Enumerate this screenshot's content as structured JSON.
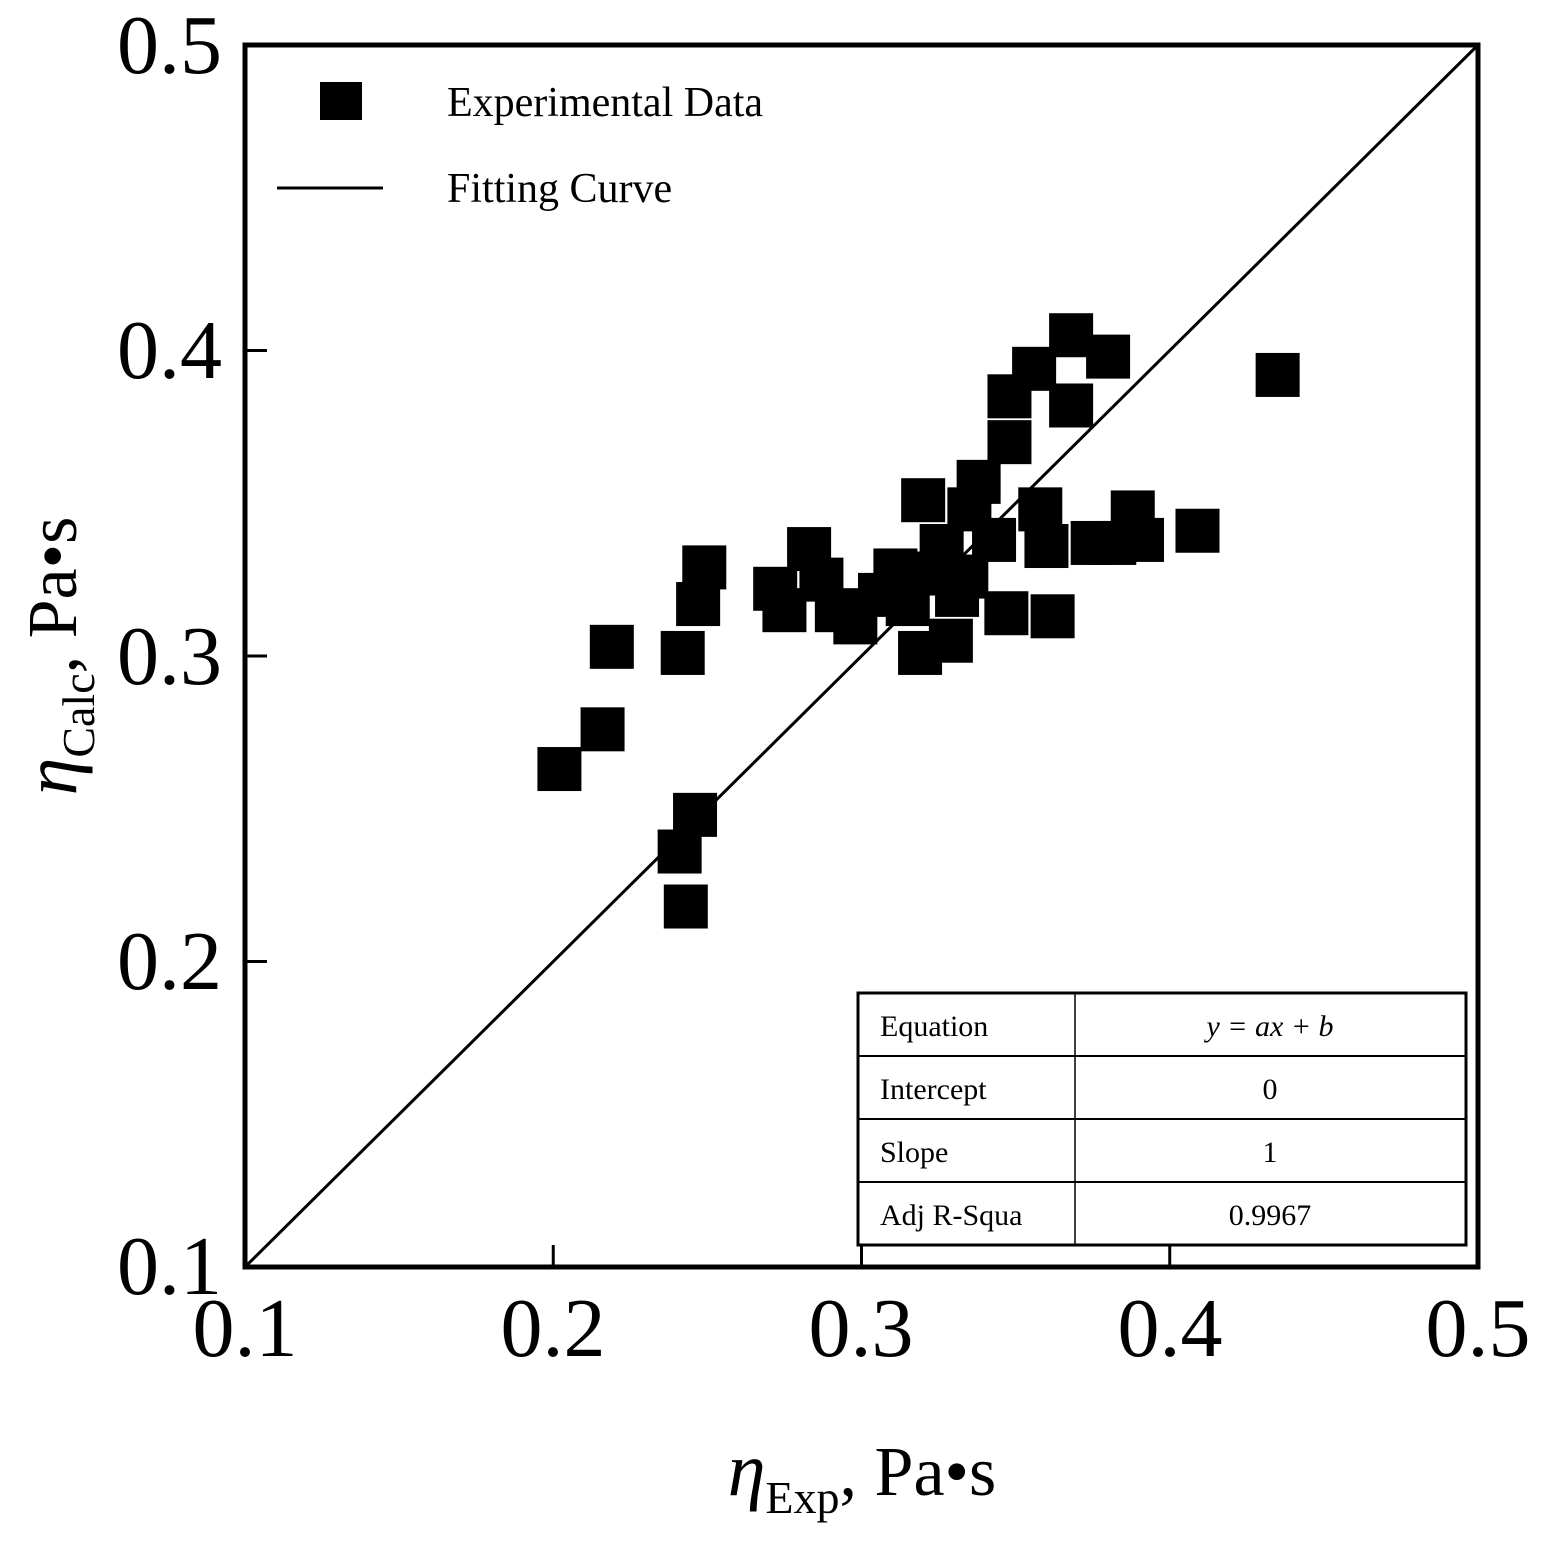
{
  "chart_data": {
    "type": "scatter",
    "title": "",
    "xlabel": {
      "symbol": "η",
      "subscript": "Exp",
      "suffix": ", Pa•s"
    },
    "ylabel": {
      "symbol": "η",
      "subscript": "Calc",
      "suffix": ", Pa•s"
    },
    "xlim": [
      0.1,
      0.5
    ],
    "ylim": [
      0.1,
      0.5
    ],
    "xticks": [
      0.1,
      0.2,
      0.3,
      0.4,
      0.5
    ],
    "yticks": [
      0.1,
      0.2,
      0.3,
      0.4,
      0.5
    ],
    "xtick_labels": [
      "0.1",
      "0.2",
      "0.3",
      "0.4",
      "0.5"
    ],
    "ytick_labels": [
      "0.1",
      "0.2",
      "0.3",
      "0.4",
      "0.5"
    ],
    "grid": false,
    "legend": {
      "position": "top-left",
      "entries": [
        {
          "label": "Experimental Data",
          "marker": "square"
        },
        {
          "label": "Fitting Curve",
          "marker": "line"
        }
      ]
    },
    "series": [
      {
        "name": "Experimental Data",
        "marker": "square",
        "color": "#000000",
        "points": [
          [
            0.202,
            0.263
          ],
          [
            0.216,
            0.276
          ],
          [
            0.219,
            0.303
          ],
          [
            0.242,
            0.301
          ],
          [
            0.247,
            0.317
          ],
          [
            0.249,
            0.329
          ],
          [
            0.246,
            0.248
          ],
          [
            0.241,
            0.236
          ],
          [
            0.243,
            0.218
          ],
          [
            0.272,
            0.322
          ],
          [
            0.275,
            0.315
          ],
          [
            0.283,
            0.335
          ],
          [
            0.287,
            0.325
          ],
          [
            0.292,
            0.315
          ],
          [
            0.298,
            0.311
          ],
          [
            0.306,
            0.32
          ],
          [
            0.311,
            0.328
          ],
          [
            0.315,
            0.317
          ],
          [
            0.319,
            0.301
          ],
          [
            0.32,
            0.351
          ],
          [
            0.323,
            0.327
          ],
          [
            0.326,
            0.336
          ],
          [
            0.329,
            0.305
          ],
          [
            0.331,
            0.32
          ],
          [
            0.334,
            0.326
          ],
          [
            0.335,
            0.348
          ],
          [
            0.338,
            0.357
          ],
          [
            0.343,
            0.338
          ],
          [
            0.347,
            0.314
          ],
          [
            0.348,
            0.37
          ],
          [
            0.348,
            0.385
          ],
          [
            0.356,
            0.394
          ],
          [
            0.358,
            0.348
          ],
          [
            0.36,
            0.336
          ],
          [
            0.362,
            0.313
          ],
          [
            0.368,
            0.405
          ],
          [
            0.368,
            0.382
          ],
          [
            0.375,
            0.337
          ],
          [
            0.38,
            0.398
          ],
          [
            0.382,
            0.337
          ],
          [
            0.388,
            0.347
          ],
          [
            0.391,
            0.338
          ],
          [
            0.409,
            0.341
          ],
          [
            0.435,
            0.392
          ]
        ]
      },
      {
        "name": "Fitting Curve",
        "type": "line",
        "color": "#000000",
        "x": [
          0.1,
          0.5
        ],
        "y": [
          0.1,
          0.5
        ]
      }
    ],
    "stats_table": {
      "rows": [
        {
          "label": "Equation",
          "value": "y = ax + b"
        },
        {
          "label": "Intercept",
          "value": "0"
        },
        {
          "label": "Slope",
          "value": "1"
        },
        {
          "label": "Adj R-Squa",
          "value": "0.9967"
        }
      ]
    }
  }
}
